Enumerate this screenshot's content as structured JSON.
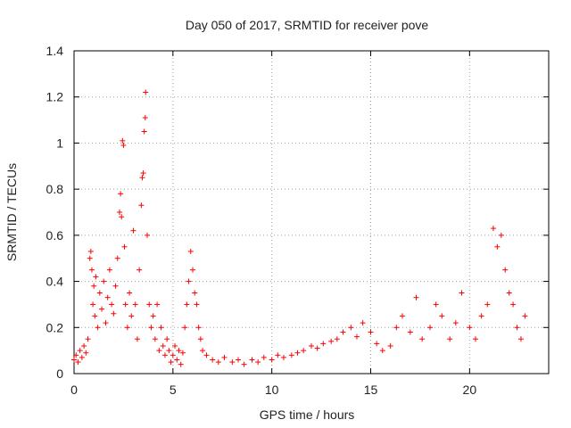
{
  "chart_data": {
    "type": "scatter",
    "title": "Day 050 of 2017, SRMTID for receiver pove",
    "xlabel": "GPS time / hours",
    "ylabel": "SRMTID / TECUs",
    "xlim": [
      0,
      24
    ],
    "ylim": [
      0,
      1.4
    ],
    "xticks": [
      0,
      5,
      10,
      15,
      20
    ],
    "xtick_labels": [
      "0",
      "5",
      "10",
      "15",
      "20"
    ],
    "yticks": [
      0,
      0.2,
      0.4,
      0.6,
      0.8,
      1,
      1.2,
      1.4
    ],
    "ytick_labels": [
      "0",
      "0.2",
      "0.4",
      "0.6",
      "0.8",
      "1",
      "1.2",
      "1.4"
    ],
    "grid": true,
    "marker": "+",
    "color": "#ff0000",
    "series": [
      {
        "name": "SRMTID",
        "points": [
          [
            0.0,
            0.06
          ],
          [
            0.1,
            0.08
          ],
          [
            0.2,
            0.05
          ],
          [
            0.3,
            0.1
          ],
          [
            0.4,
            0.07
          ],
          [
            0.5,
            0.12
          ],
          [
            0.6,
            0.09
          ],
          [
            0.7,
            0.15
          ],
          [
            0.8,
            0.5
          ],
          [
            0.85,
            0.53
          ],
          [
            0.9,
            0.45
          ],
          [
            0.95,
            0.3
          ],
          [
            1.0,
            0.38
          ],
          [
            1.05,
            0.25
          ],
          [
            1.1,
            0.42
          ],
          [
            1.2,
            0.2
          ],
          [
            1.3,
            0.35
          ],
          [
            1.4,
            0.28
          ],
          [
            1.5,
            0.4
          ],
          [
            1.6,
            0.22
          ],
          [
            1.7,
            0.33
          ],
          [
            1.8,
            0.45
          ],
          [
            1.9,
            0.3
          ],
          [
            2.0,
            0.26
          ],
          [
            2.1,
            0.38
          ],
          [
            2.2,
            0.5
          ],
          [
            2.3,
            0.7
          ],
          [
            2.35,
            0.78
          ],
          [
            2.4,
            0.68
          ],
          [
            2.45,
            1.01
          ],
          [
            2.5,
            0.99
          ],
          [
            2.55,
            0.55
          ],
          [
            2.6,
            0.3
          ],
          [
            2.7,
            0.2
          ],
          [
            2.8,
            0.35
          ],
          [
            2.9,
            0.25
          ],
          [
            3.0,
            0.62
          ],
          [
            3.1,
            0.3
          ],
          [
            3.2,
            0.15
          ],
          [
            3.3,
            0.45
          ],
          [
            3.4,
            0.73
          ],
          [
            3.45,
            0.85
          ],
          [
            3.5,
            0.87
          ],
          [
            3.55,
            1.05
          ],
          [
            3.6,
            1.11
          ],
          [
            3.62,
            1.22
          ],
          [
            3.7,
            0.6
          ],
          [
            3.8,
            0.3
          ],
          [
            3.9,
            0.2
          ],
          [
            4.0,
            0.25
          ],
          [
            4.1,
            0.15
          ],
          [
            4.2,
            0.3
          ],
          [
            4.3,
            0.1
          ],
          [
            4.4,
            0.2
          ],
          [
            4.5,
            0.12
          ],
          [
            4.6,
            0.08
          ],
          [
            4.7,
            0.15
          ],
          [
            4.8,
            0.1
          ],
          [
            4.9,
            0.05
          ],
          [
            5.0,
            0.08
          ],
          [
            5.1,
            0.12
          ],
          [
            5.2,
            0.06
          ],
          [
            5.3,
            0.1
          ],
          [
            5.4,
            0.04
          ],
          [
            5.5,
            0.09
          ],
          [
            5.6,
            0.2
          ],
          [
            5.7,
            0.3
          ],
          [
            5.8,
            0.4
          ],
          [
            5.9,
            0.53
          ],
          [
            6.0,
            0.45
          ],
          [
            6.1,
            0.35
          ],
          [
            6.2,
            0.3
          ],
          [
            6.3,
            0.2
          ],
          [
            6.4,
            0.15
          ],
          [
            6.5,
            0.1
          ],
          [
            6.7,
            0.08
          ],
          [
            7.0,
            0.06
          ],
          [
            7.3,
            0.05
          ],
          [
            7.6,
            0.07
          ],
          [
            8.0,
            0.05
          ],
          [
            8.3,
            0.06
          ],
          [
            8.6,
            0.04
          ],
          [
            9.0,
            0.06
          ],
          [
            9.3,
            0.05
          ],
          [
            9.6,
            0.07
          ],
          [
            10.0,
            0.06
          ],
          [
            10.3,
            0.08
          ],
          [
            10.6,
            0.07
          ],
          [
            11.0,
            0.08
          ],
          [
            11.3,
            0.09
          ],
          [
            11.6,
            0.1
          ],
          [
            12.0,
            0.12
          ],
          [
            12.3,
            0.11
          ],
          [
            12.6,
            0.13
          ],
          [
            13.0,
            0.14
          ],
          [
            13.3,
            0.15
          ],
          [
            13.6,
            0.18
          ],
          [
            14.0,
            0.2
          ],
          [
            14.3,
            0.16
          ],
          [
            14.6,
            0.22
          ],
          [
            15.0,
            0.18
          ],
          [
            15.3,
            0.13
          ],
          [
            15.6,
            0.1
          ],
          [
            16.0,
            0.12
          ],
          [
            16.3,
            0.2
          ],
          [
            16.6,
            0.25
          ],
          [
            17.0,
            0.18
          ],
          [
            17.3,
            0.33
          ],
          [
            17.6,
            0.15
          ],
          [
            18.0,
            0.2
          ],
          [
            18.3,
            0.3
          ],
          [
            18.6,
            0.25
          ],
          [
            19.0,
            0.15
          ],
          [
            19.3,
            0.22
          ],
          [
            19.6,
            0.35
          ],
          [
            20.0,
            0.2
          ],
          [
            20.3,
            0.15
          ],
          [
            20.6,
            0.25
          ],
          [
            20.9,
            0.3
          ],
          [
            21.2,
            0.63
          ],
          [
            21.4,
            0.55
          ],
          [
            21.6,
            0.6
          ],
          [
            21.8,
            0.45
          ],
          [
            22.0,
            0.35
          ],
          [
            22.2,
            0.3
          ],
          [
            22.4,
            0.2
          ],
          [
            22.6,
            0.15
          ],
          [
            22.8,
            0.25
          ]
        ]
      }
    ]
  }
}
